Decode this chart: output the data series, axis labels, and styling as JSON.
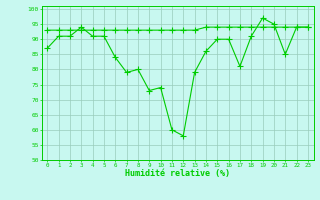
{
  "line_main": [
    87,
    91,
    91,
    94,
    91,
    91,
    84,
    79,
    80,
    73,
    74,
    60,
    58,
    79,
    86,
    90,
    90,
    81,
    91,
    97,
    95,
    85,
    94,
    94
  ],
  "line_flat": [
    93,
    93,
    93,
    93,
    93,
    93,
    93,
    93,
    93,
    93,
    93,
    93,
    93,
    93,
    94,
    94,
    94,
    94,
    94,
    94,
    94,
    94,
    94,
    94
  ],
  "x": [
    0,
    1,
    2,
    3,
    4,
    5,
    6,
    7,
    8,
    9,
    10,
    11,
    12,
    13,
    14,
    15,
    16,
    17,
    18,
    19,
    20,
    21,
    22,
    23
  ],
  "xlabel": "Humidité relative (%)",
  "ylim": [
    50,
    101
  ],
  "yticks": [
    50,
    55,
    60,
    65,
    70,
    75,
    80,
    85,
    90,
    95,
    100
  ],
  "xticks": [
    0,
    1,
    2,
    3,
    4,
    5,
    6,
    7,
    8,
    9,
    10,
    11,
    12,
    13,
    14,
    15,
    16,
    17,
    18,
    19,
    20,
    21,
    22,
    23
  ],
  "line_color": "#00cc00",
  "bg_color": "#c8f8f0",
  "grid_color": "#99ccbb",
  "markersize": 2.5
}
